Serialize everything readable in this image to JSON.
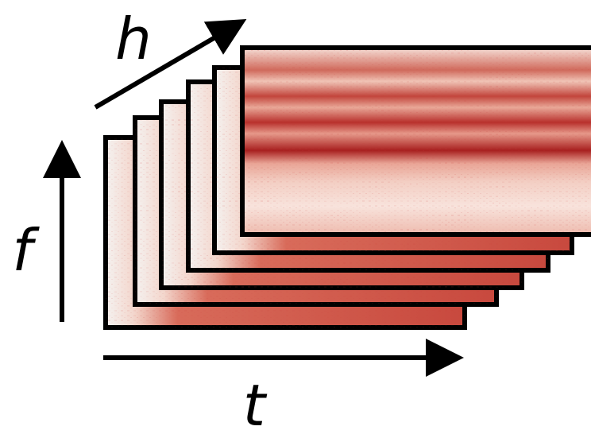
{
  "labels": {
    "h": "h",
    "f": "f",
    "t": "t"
  }
}
